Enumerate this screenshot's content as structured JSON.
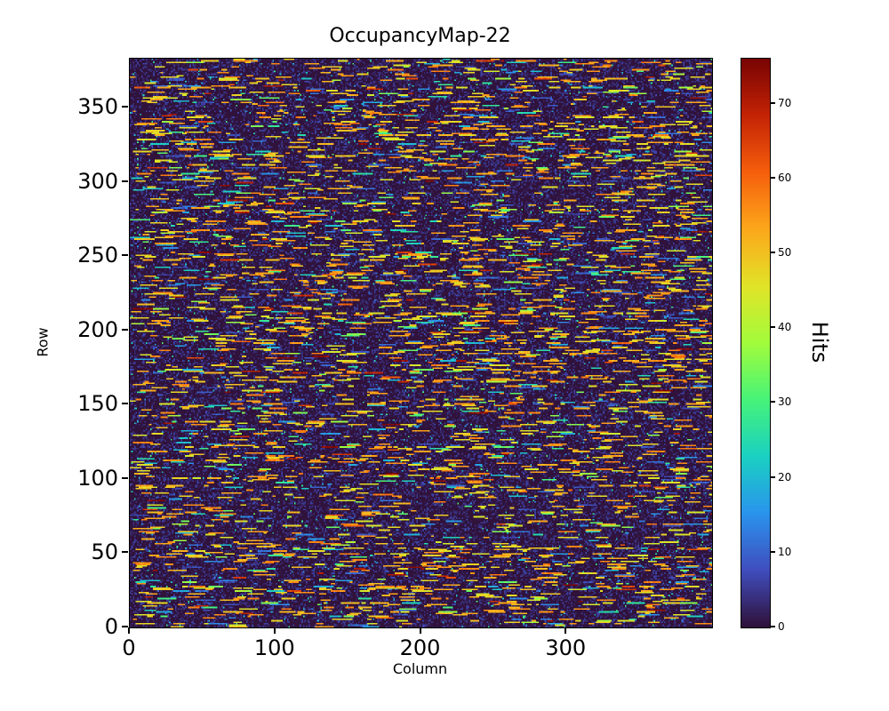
{
  "figure": {
    "background": "#ffffff"
  },
  "chart_data": {
    "type": "heatmap",
    "title": "OccupancyMap-22",
    "xlabel": "Column",
    "ylabel": "Row",
    "x_range": [
      0,
      400
    ],
    "y_range": [
      0,
      383
    ],
    "x_ticks": [
      0,
      100,
      200,
      300
    ],
    "y_ticks": [
      0,
      50,
      100,
      150,
      200,
      250,
      300,
      350
    ],
    "grid": {
      "cols": 400,
      "rows": 383
    },
    "colormap": "turbo",
    "colorbar": {
      "label": "Hits",
      "vmin": 0,
      "vmax": 76,
      "ticks": [
        0,
        10,
        20,
        30,
        40,
        50,
        60,
        70
      ]
    },
    "background_color": "#30123b",
    "colormap_stops": [
      [
        0.0,
        [
          48,
          18,
          59
        ]
      ],
      [
        0.1,
        [
          64,
          78,
          191
        ]
      ],
      [
        0.2,
        [
          42,
          148,
          237
        ]
      ],
      [
        0.3,
        [
          26,
          209,
          194
        ]
      ],
      [
        0.4,
        [
          70,
          243,
          121
        ]
      ],
      [
        0.5,
        [
          162,
          252,
          60
        ]
      ],
      [
        0.6,
        [
          225,
          228,
          40
        ]
      ],
      [
        0.7,
        [
          252,
          168,
          27
        ]
      ],
      [
        0.8,
        [
          246,
          96,
          12
        ]
      ],
      [
        0.9,
        [
          197,
          36,
          5
        ]
      ],
      [
        1.0,
        [
          122,
          4,
          3
        ]
      ]
    ],
    "pattern": {
      "seed": 22,
      "dash_start_prob": 0.024,
      "dash_min_len": 2,
      "dash_max_len": 14,
      "bg_noise_prob": 0.32,
      "bg_noise_max": 6,
      "dot_prob": 0.015,
      "value_mix": [
        {
          "weight": 0.7,
          "min": 44,
          "max": 58
        },
        {
          "weight": 0.12,
          "min": 20,
          "max": 40
        },
        {
          "weight": 0.13,
          "min": 6,
          "max": 20
        },
        {
          "weight": 0.05,
          "min": 58,
          "max": 76
        }
      ]
    }
  }
}
